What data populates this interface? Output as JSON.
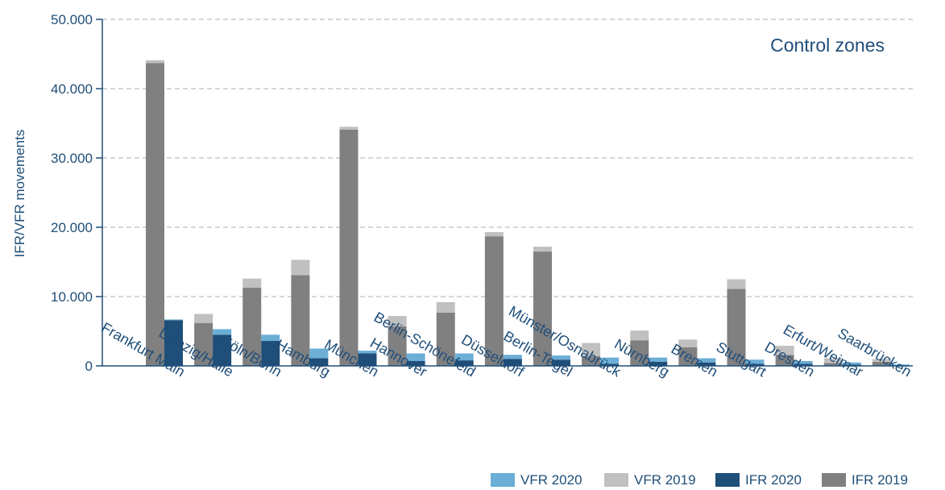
{
  "chart_data": {
    "type": "bar",
    "annotation": "Control zones",
    "ylabel": "IFR/VFR movements",
    "ylim": [
      0,
      50000
    ],
    "yticks": [
      0,
      10000,
      20000,
      30000,
      40000,
      50000
    ],
    "ytick_labels": [
      "0",
      "10.000",
      "20.000",
      "30.000",
      "40.000",
      "50.000"
    ],
    "grid": true,
    "legend_position": "bottom-right",
    "categories": [
      "Frankfurt Main",
      "Leipzig/Halle",
      "Köln/Bonn",
      "Hamburg",
      "München",
      "Hannover",
      "Berlin-Schönefeld",
      "Düsseldorf",
      "Berlin-Tegel",
      "Münster/Osnabrück",
      "Nürnberg",
      "Bremen",
      "Stuttgart",
      "Dresden",
      "Erfurt/Weimar",
      "Saarbrücken"
    ],
    "series": [
      {
        "name": "IFR  2019",
        "color": "#808080",
        "stack": "2019",
        "values": [
          43700,
          6200,
          11300,
          13100,
          34100,
          5700,
          7700,
          18700,
          16500,
          1400,
          3700,
          2700,
          11100,
          1600,
          400,
          600
        ]
      },
      {
        "name": "VFR  2019",
        "color": "#c0c0c0",
        "stack": "2019",
        "values": [
          400,
          1300,
          1300,
          2200,
          400,
          1500,
          1500,
          600,
          700,
          1900,
          1400,
          1100,
          1400,
          1300,
          700,
          400
        ]
      },
      {
        "name": "IFR 2020",
        "color": "#1f4e79",
        "stack": "2020",
        "values": [
          6600,
          4500,
          3600,
          1100,
          1800,
          700,
          800,
          1000,
          900,
          300,
          600,
          500,
          300,
          300,
          200,
          100
        ]
      },
      {
        "name": "VFR 2020",
        "color": "#6baed6",
        "stack": "2020",
        "values": [
          100,
          800,
          900,
          1400,
          400,
          1100,
          1000,
          600,
          600,
          900,
          600,
          600,
          600,
          400,
          300,
          100
        ]
      }
    ],
    "legend_order": [
      "VFR 2020",
      "VFR  2019",
      "IFR 2020",
      "IFR  2019"
    ]
  }
}
